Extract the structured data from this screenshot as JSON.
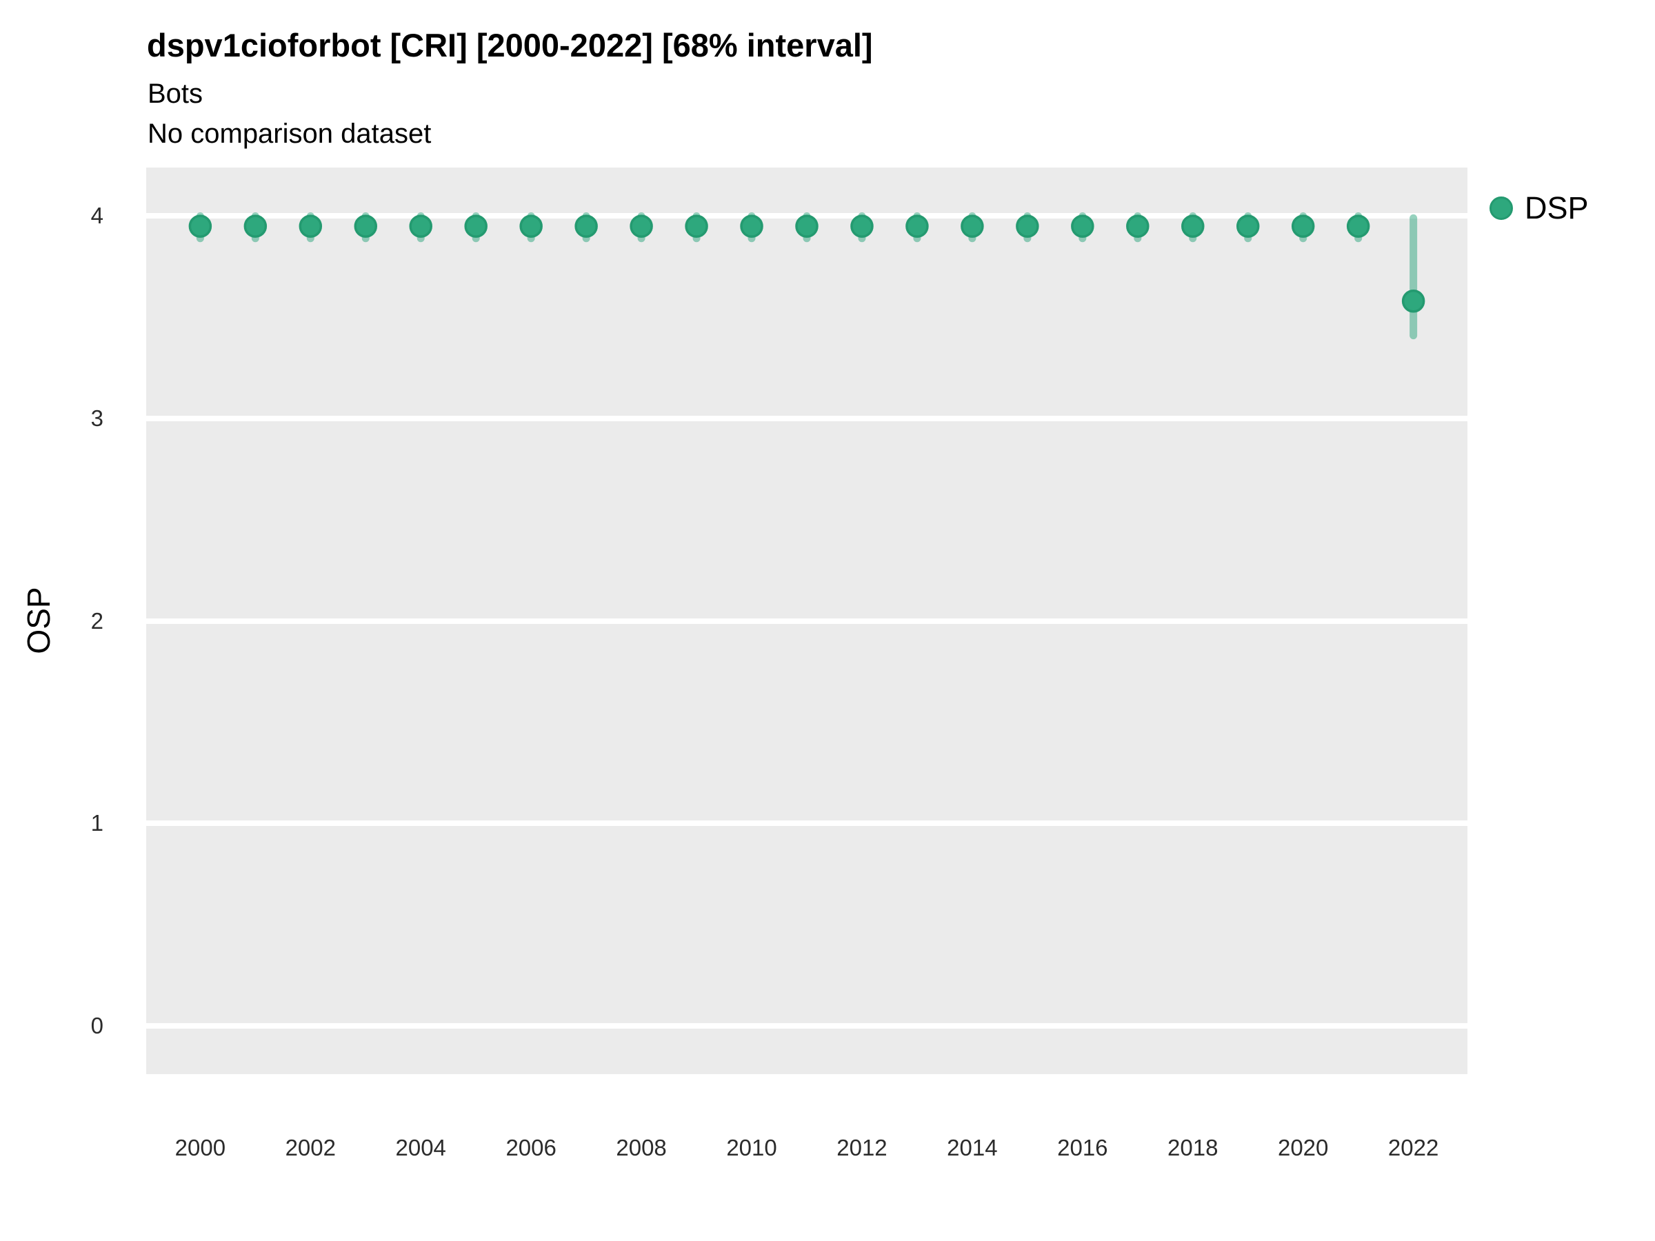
{
  "header": {
    "title": "dspv1cioforbot [CRI] [2000-2022] [68% interval]",
    "subtitle": "Bots",
    "comparison_note": "No comparison dataset"
  },
  "chart_data": {
    "type": "scatter",
    "variant": "pointrange",
    "title": "dspv1cioforbot [CRI] [2000-2022] [68% interval]",
    "subtitle": "Bots",
    "note": "No comparison dataset",
    "xlabel": "",
    "ylabel": "OSP",
    "x_domain": [
      1999.02,
      2022.98
    ],
    "y_domain": [
      -0.24,
      4.24
    ],
    "yticks": [
      0,
      1,
      2,
      3,
      4
    ],
    "xticks": [
      2000,
      2002,
      2004,
      2006,
      2008,
      2010,
      2012,
      2014,
      2016,
      2018,
      2020,
      2022
    ],
    "grid": "horizontal-major-only",
    "panel_bg": "#ebebeb",
    "grid_color": "#ffffff",
    "legend": {
      "position": "right-top",
      "entries": [
        {
          "label": "DSP",
          "color": "#2ea87d",
          "stroke": "#249a70"
        }
      ]
    },
    "series": [
      {
        "name": "DSP",
        "marker_color": "#2ea87d",
        "marker_stroke": "#249a70",
        "interval_color": "rgba(46,166,126,0.5)",
        "points": [
          {
            "x": 2000,
            "y": 3.95,
            "lo": 3.89,
            "hi": 4.0
          },
          {
            "x": 2001,
            "y": 3.95,
            "lo": 3.89,
            "hi": 4.0
          },
          {
            "x": 2002,
            "y": 3.95,
            "lo": 3.89,
            "hi": 4.0
          },
          {
            "x": 2003,
            "y": 3.95,
            "lo": 3.89,
            "hi": 4.0
          },
          {
            "x": 2004,
            "y": 3.95,
            "lo": 3.89,
            "hi": 4.0
          },
          {
            "x": 2005,
            "y": 3.95,
            "lo": 3.89,
            "hi": 4.0
          },
          {
            "x": 2006,
            "y": 3.95,
            "lo": 3.89,
            "hi": 4.0
          },
          {
            "x": 2007,
            "y": 3.95,
            "lo": 3.89,
            "hi": 4.0
          },
          {
            "x": 2008,
            "y": 3.95,
            "lo": 3.89,
            "hi": 4.0
          },
          {
            "x": 2009,
            "y": 3.95,
            "lo": 3.89,
            "hi": 4.0
          },
          {
            "x": 2010,
            "y": 3.95,
            "lo": 3.89,
            "hi": 4.0
          },
          {
            "x": 2011,
            "y": 3.95,
            "lo": 3.89,
            "hi": 4.0
          },
          {
            "x": 2012,
            "y": 3.95,
            "lo": 3.89,
            "hi": 4.0
          },
          {
            "x": 2013,
            "y": 3.95,
            "lo": 3.89,
            "hi": 4.0
          },
          {
            "x": 2014,
            "y": 3.95,
            "lo": 3.89,
            "hi": 4.0
          },
          {
            "x": 2015,
            "y": 3.95,
            "lo": 3.89,
            "hi": 4.0
          },
          {
            "x": 2016,
            "y": 3.95,
            "lo": 3.89,
            "hi": 4.0
          },
          {
            "x": 2017,
            "y": 3.95,
            "lo": 3.89,
            "hi": 4.0
          },
          {
            "x": 2018,
            "y": 3.95,
            "lo": 3.89,
            "hi": 4.0
          },
          {
            "x": 2019,
            "y": 3.95,
            "lo": 3.89,
            "hi": 4.0
          },
          {
            "x": 2020,
            "y": 3.95,
            "lo": 3.89,
            "hi": 4.0
          },
          {
            "x": 2021,
            "y": 3.95,
            "lo": 3.89,
            "hi": 4.0
          },
          {
            "x": 2022,
            "y": 3.58,
            "lo": 3.41,
            "hi": 3.99
          }
        ]
      }
    ]
  }
}
